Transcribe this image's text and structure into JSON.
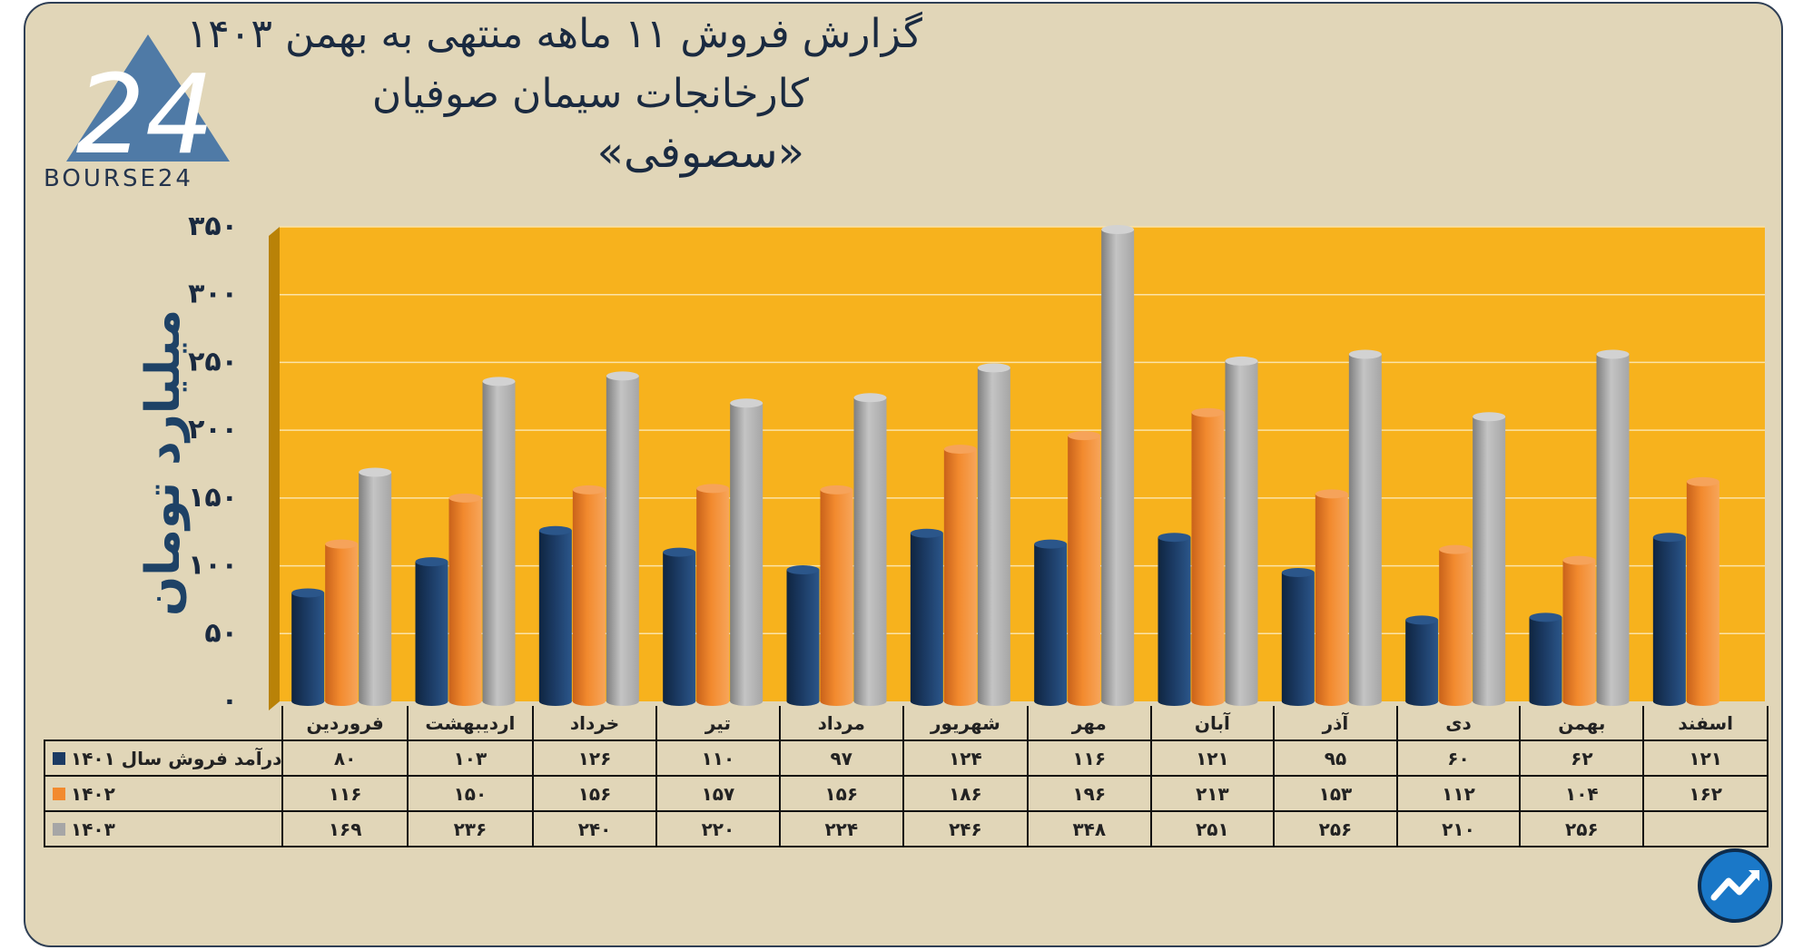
{
  "header": {
    "title_line1": "گزارش  فروش ۱۱ ماهه منتهی به بهمن ۱۴۰۳",
    "title_line2": "کارخانجات سیمان صوفیان",
    "title_line3": "«سصوفی»"
  },
  "logo": {
    "text": "BOURSE24",
    "mark": "24"
  },
  "badge": {
    "icon": "chart-trend-up-icon"
  },
  "colors": {
    "plot_bg": "#f7b21d",
    "series_1401": "#1b3a63",
    "series_1402": "#f28a2e",
    "series_1403": "#a6a6a6",
    "page_bg": "#e1d6b8"
  },
  "chart_data": {
    "type": "bar",
    "title": "گزارش  فروش ۱۱ ماهه منتهی به بهمن ۱۴۰۳",
    "ylabel": "میلیارد تومان",
    "ylim": [
      0,
      350
    ],
    "yticks": [
      "۰",
      "۵۰",
      "۱۰۰",
      "۱۵۰",
      "۲۰۰",
      "۲۵۰",
      "۳۰۰",
      "۳۵۰"
    ],
    "grid": true,
    "categories": [
      "فروردین",
      "اردیبهشت",
      "خرداد",
      "تیر",
      "مرداد",
      "شهریور",
      "مهر",
      "آبان",
      "آذر",
      "دی",
      "بهمن",
      "اسفند"
    ],
    "series": [
      {
        "name": "درآمد فروش سال ۱۴۰۱",
        "values": [
          80,
          103,
          126,
          110,
          97,
          124,
          116,
          121,
          95,
          60,
          62,
          121
        ],
        "labels": [
          "۸۰",
          "۱۰۳",
          "۱۲۶",
          "۱۱۰",
          "۹۷",
          "۱۲۴",
          "۱۱۶",
          "۱۲۱",
          "۹۵",
          "۶۰",
          "۶۲",
          "۱۲۱"
        ]
      },
      {
        "name": "۱۴۰۲",
        "values": [
          116,
          150,
          156,
          157,
          156,
          186,
          196,
          213,
          153,
          112,
          104,
          162
        ],
        "labels": [
          "۱۱۶",
          "۱۵۰",
          "۱۵۶",
          "۱۵۷",
          "۱۵۶",
          "۱۸۶",
          "۱۹۶",
          "۲۱۳",
          "۱۵۳",
          "۱۱۲",
          "۱۰۴",
          "۱۶۲"
        ]
      },
      {
        "name": "۱۴۰۳",
        "values": [
          169,
          236,
          240,
          220,
          224,
          246,
          348,
          251,
          256,
          210,
          256,
          null
        ],
        "labels": [
          "۱۶۹",
          "۲۳۶",
          "۲۴۰",
          "۲۲۰",
          "۲۲۴",
          "۲۴۶",
          "۳۴۸",
          "۲۵۱",
          "۲۵۶",
          "۲۱۰",
          "۲۵۶",
          ""
        ]
      }
    ]
  }
}
